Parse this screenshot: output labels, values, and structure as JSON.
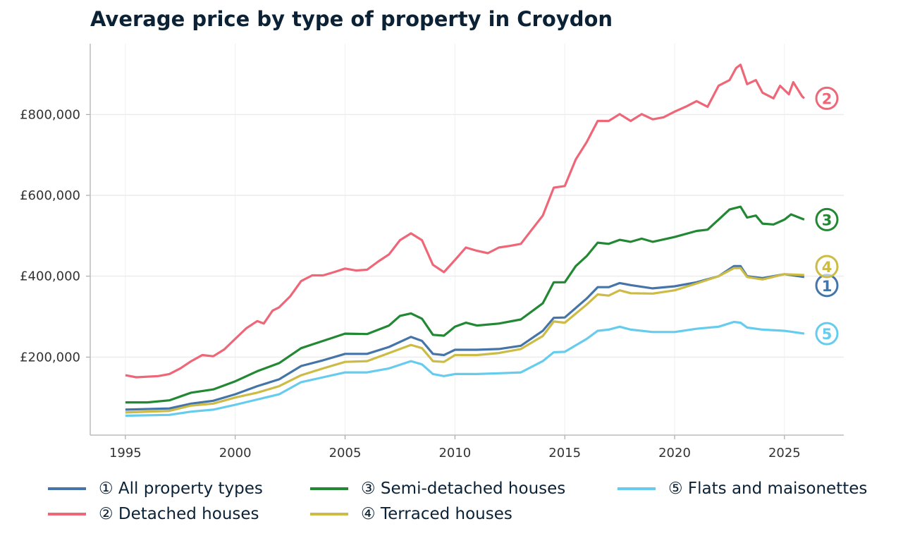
{
  "chart_data": {
    "type": "line",
    "title": "Average price by type of property in Croydon",
    "xlabel": "",
    "ylabel": "",
    "xlim": [
      1993.4,
      2027.7
    ],
    "ylim": [
      7000,
      975000
    ],
    "x_ticks": [
      1995,
      2000,
      2005,
      2010,
      2015,
      2020,
      2025
    ],
    "x_tick_labels": [
      "1995",
      "2000",
      "2005",
      "2010",
      "2015",
      "2020",
      "2025"
    ],
    "y_ticks": [
      200000,
      400000,
      600000,
      800000
    ],
    "y_tick_labels": [
      "£200,000",
      "£400,000",
      "£600,000",
      "£800,000"
    ],
    "grid": true,
    "legend_placement": "bottom",
    "series": [
      {
        "name": "① All property types",
        "end_label": "1",
        "color": "#4575a8",
        "x": [
          1995,
          1997,
          1998,
          1999,
          2000,
          2001,
          2002,
          2003,
          2004,
          2005,
          2006,
          2007,
          2008,
          2008.5,
          2009,
          2009.5,
          2010,
          2011,
          2012,
          2013,
          2014,
          2014.5,
          2015,
          2016,
          2016.5,
          2017,
          2017.5,
          2018,
          2019,
          2020,
          2021,
          2022,
          2022.7,
          2023,
          2023.3,
          2024,
          2025,
          2025.9
        ],
        "y": [
          70000,
          73000,
          85000,
          92000,
          108000,
          128000,
          145000,
          178000,
          192000,
          208000,
          208000,
          225000,
          250000,
          240000,
          208000,
          205000,
          218000,
          218000,
          220000,
          228000,
          265000,
          297000,
          298000,
          345000,
          373000,
          373000,
          383000,
          378000,
          370000,
          375000,
          385000,
          400000,
          425000,
          425000,
          400000,
          395000,
          405000,
          398000
        ]
      },
      {
        "name": "② Detached houses",
        "end_label": "2",
        "color": "#ee6677",
        "x": [
          1995,
          1995.5,
          1996.5,
          1997,
          1997.5,
          1998,
          1998.5,
          1999,
          1999.5,
          2000,
          2000.5,
          2001,
          2001.3,
          2001.7,
          2002,
          2002.5,
          2003,
          2003.5,
          2004,
          2004.5,
          2005,
          2005.5,
          2006,
          2006.5,
          2007,
          2007.5,
          2008,
          2008.5,
          2009,
          2009.5,
          2010,
          2010.5,
          2011,
          2011.5,
          2012,
          2012.5,
          2013,
          2013.5,
          2014,
          2014.5,
          2015,
          2015.5,
          2016,
          2016.5,
          2017,
          2017.5,
          2018,
          2018.5,
          2019,
          2019.5,
          2020,
          2020.5,
          2021,
          2021.5,
          2022,
          2022.5,
          2022.8,
          2023,
          2023.3,
          2023.7,
          2024,
          2024.5,
          2024.8,
          2025.2,
          2025.4,
          2025.8,
          2025.9
        ],
        "y": [
          155000,
          150000,
          153000,
          158000,
          172000,
          190000,
          205000,
          202000,
          219000,
          245000,
          271000,
          289000,
          283000,
          315000,
          323000,
          350000,
          388000,
          402000,
          402000,
          410000,
          419000,
          414000,
          416000,
          436000,
          454000,
          489000,
          506000,
          489000,
          428000,
          410000,
          440000,
          471000,
          463000,
          457000,
          471000,
          475000,
          480000,
          515000,
          550000,
          619000,
          623000,
          689000,
          732000,
          784000,
          784000,
          801000,
          784000,
          801000,
          788000,
          793000,
          807000,
          819000,
          833000,
          819000,
          871000,
          885000,
          915000,
          923000,
          875000,
          885000,
          854000,
          840000,
          871000,
          850000,
          880000,
          845000,
          840000
        ]
      },
      {
        "name": "③ Semi-detached houses",
        "end_label": "3",
        "color": "#228833",
        "x": [
          1995,
          1996,
          1997,
          1998,
          1999,
          2000,
          2001,
          2002,
          2003,
          2004,
          2005,
          2006,
          2007,
          2007.5,
          2008,
          2008.5,
          2009,
          2009.5,
          2010,
          2010.5,
          2011,
          2012,
          2013,
          2014,
          2014.5,
          2015,
          2015.5,
          2016,
          2016.5,
          2017,
          2017.5,
          2018,
          2018.5,
          2019,
          2020,
          2021,
          2021.5,
          2022,
          2022.5,
          2023,
          2023.3,
          2023.7,
          2024,
          2024.5,
          2025,
          2025.3,
          2025.9
        ],
        "y": [
          88000,
          88000,
          93000,
          112000,
          120000,
          140000,
          165000,
          185000,
          222000,
          240000,
          258000,
          257000,
          278000,
          302000,
          308000,
          295000,
          255000,
          253000,
          275000,
          285000,
          278000,
          283000,
          293000,
          333000,
          385000,
          385000,
          425000,
          450000,
          483000,
          480000,
          490000,
          485000,
          493000,
          485000,
          497000,
          512000,
          515000,
          540000,
          565000,
          572000,
          545000,
          550000,
          530000,
          528000,
          540000,
          553000,
          540000
        ]
      },
      {
        "name": "④ Terraced houses",
        "end_label": "4",
        "color": "#ccbb44",
        "x": [
          1995,
          1997,
          1998,
          1999,
          2000,
          2001,
          2002,
          2003,
          2004,
          2005,
          2006,
          2007,
          2008,
          2008.5,
          2009,
          2009.5,
          2010,
          2011,
          2012,
          2013,
          2014,
          2014.5,
          2015,
          2016,
          2016.5,
          2017,
          2017.5,
          2018,
          2019,
          2020,
          2021,
          2022,
          2022.7,
          2023,
          2023.3,
          2024,
          2025,
          2025.9
        ],
        "y": [
          63000,
          67000,
          80000,
          85000,
          100000,
          112000,
          128000,
          155000,
          172000,
          188000,
          190000,
          210000,
          230000,
          222000,
          190000,
          188000,
          205000,
          205000,
          210000,
          220000,
          252000,
          288000,
          285000,
          330000,
          355000,
          352000,
          365000,
          358000,
          357000,
          365000,
          382000,
          400000,
          420000,
          420000,
          398000,
          392000,
          405000,
          403000
        ]
      },
      {
        "name": "⑤ Flats and maisonettes",
        "end_label": "5",
        "color": "#66ccee",
        "x": [
          1995,
          1997,
          1998,
          1999,
          2000,
          2001,
          2002,
          2003,
          2004,
          2005,
          2006,
          2007,
          2008,
          2008.5,
          2009,
          2009.5,
          2010,
          2011,
          2012,
          2013,
          2014,
          2014.5,
          2015,
          2016,
          2016.5,
          2017,
          2017.5,
          2018,
          2019,
          2020,
          2021,
          2022,
          2022.7,
          2023,
          2023.3,
          2024,
          2025,
          2025.9
        ],
        "y": [
          55000,
          57000,
          65000,
          70000,
          82000,
          95000,
          108000,
          138000,
          150000,
          162000,
          162000,
          172000,
          190000,
          182000,
          158000,
          153000,
          158000,
          158000,
          160000,
          162000,
          190000,
          212000,
          213000,
          245000,
          265000,
          268000,
          275000,
          268000,
          262000,
          262000,
          270000,
          275000,
          287000,
          285000,
          273000,
          268000,
          265000,
          258000
        ]
      }
    ]
  }
}
